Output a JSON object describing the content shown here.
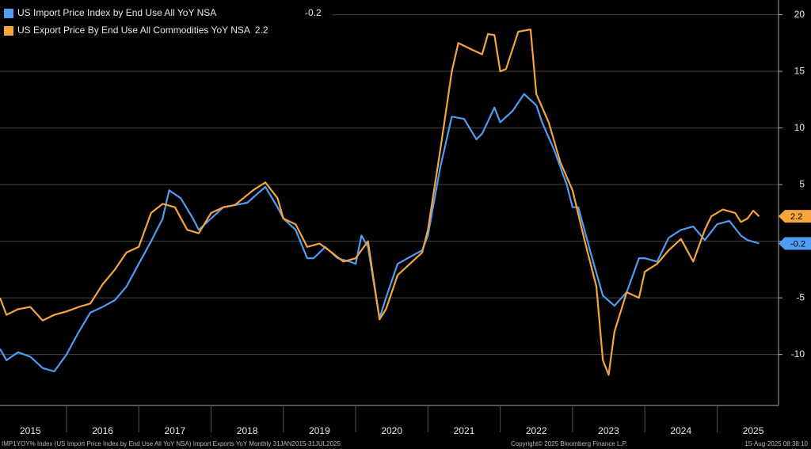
{
  "chart_data": {
    "type": "line",
    "footer": "IMP1YOY% Index (US Import Price Index by End Use All YoY NSA) Import Exports YoY  Monthly 31JAN2015-31JUL2025",
    "copyright": "Copyright© 2025 Bloomberg Finance L.P.",
    "timestamp": "15-Aug-2025 08:38:10",
    "xlim": [
      2015.08,
      2025.85
    ],
    "xticks": [
      {
        "value": 2015,
        "label": "2015"
      },
      {
        "value": 2016,
        "label": "2016"
      },
      {
        "value": 2017,
        "label": "2017"
      },
      {
        "value": 2018,
        "label": "2018"
      },
      {
        "value": 2019,
        "label": "2019"
      },
      {
        "value": 2020,
        "label": "2020"
      },
      {
        "value": 2021,
        "label": "2021"
      },
      {
        "value": 2022,
        "label": "2022"
      },
      {
        "value": 2023,
        "label": "2023"
      },
      {
        "value": 2024,
        "label": "2024"
      },
      {
        "value": 2025,
        "label": "2025"
      }
    ],
    "ylim": [
      -14.5,
      21.3
    ],
    "yticks": [
      -10,
      -5,
      0,
      5,
      10,
      15,
      20
    ],
    "grid": true,
    "series": [
      {
        "name": "US Import Price Index by End Use All YoY NSA",
        "color": "#4f9cf0",
        "last_value": -0.2,
        "x": [
          2015.08,
          2015.17,
          2015.33,
          2015.5,
          2015.67,
          2015.83,
          2016.0,
          2016.17,
          2016.33,
          2016.5,
          2016.67,
          2016.83,
          2017.0,
          2017.17,
          2017.33,
          2017.42,
          2017.58,
          2017.75,
          2017.83,
          2018.0,
          2018.17,
          2018.33,
          2018.5,
          2018.75,
          2018.92,
          2019.0,
          2019.17,
          2019.33,
          2019.42,
          2019.58,
          2019.75,
          2019.92,
          2020.0,
          2020.08,
          2020.17,
          2020.33,
          2020.42,
          2020.58,
          2020.75,
          2020.92,
          2021.0,
          2021.17,
          2021.33,
          2021.5,
          2021.67,
          2021.75,
          2021.92,
          2022.0,
          2022.17,
          2022.33,
          2022.5,
          2022.58,
          2022.75,
          2022.92,
          2023.0,
          2023.08,
          2023.25,
          2023.42,
          2023.58,
          2023.75,
          2023.92,
          2024.0,
          2024.17,
          2024.33,
          2024.5,
          2024.67,
          2024.83,
          2025.0,
          2025.17,
          2025.33,
          2025.42,
          2025.58
        ],
        "values": [
          -9.5,
          -10.5,
          -9.8,
          -10.2,
          -11.2,
          -11.5,
          -10,
          -8,
          -6.3,
          -5.8,
          -5.2,
          -4,
          -2,
          0,
          2,
          4.5,
          3.8,
          2,
          1,
          2,
          3,
          3.2,
          3.4,
          4.8,
          3,
          2,
          1,
          -1.5,
          -1.5,
          -0.5,
          -1.5,
          -1.8,
          -2,
          0.5,
          -0.5,
          -6.8,
          -5,
          -2,
          -1.4,
          -0.8,
          0.5,
          6.5,
          11,
          10.8,
          9,
          9.5,
          11.8,
          10.5,
          11.5,
          13,
          12,
          10.5,
          8,
          5,
          3,
          3,
          -1,
          -4.8,
          -5.7,
          -4.5,
          -1.5,
          -1.5,
          -1.8,
          0.3,
          1,
          1.3,
          0.1,
          1.5,
          1.8,
          0.5,
          0.1,
          -0.2
        ]
      },
      {
        "name": "US Export Price By End Use All Commodities YoY NSA",
        "color": "#f5a53c",
        "last_value": 2.2,
        "x": [
          2015.08,
          2015.17,
          2015.33,
          2015.5,
          2015.67,
          2015.83,
          2016.0,
          2016.17,
          2016.33,
          2016.5,
          2016.67,
          2016.83,
          2017.0,
          2017.17,
          2017.33,
          2017.5,
          2017.67,
          2017.83,
          2018.0,
          2018.17,
          2018.33,
          2018.58,
          2018.75,
          2018.92,
          2019.0,
          2019.17,
          2019.33,
          2019.5,
          2019.67,
          2019.83,
          2020.0,
          2020.17,
          2020.33,
          2020.42,
          2020.58,
          2020.75,
          2020.92,
          2021.0,
          2021.17,
          2021.33,
          2021.42,
          2021.58,
          2021.75,
          2021.83,
          2021.92,
          2022.0,
          2022.08,
          2022.25,
          2022.42,
          2022.5,
          2022.67,
          2022.83,
          2023.0,
          2023.17,
          2023.33,
          2023.42,
          2023.5,
          2023.58,
          2023.75,
          2023.92,
          2024.0,
          2024.17,
          2024.33,
          2024.5,
          2024.67,
          2024.83,
          2024.92,
          2025.08,
          2025.25,
          2025.33,
          2025.42,
          2025.5,
          2025.58
        ],
        "values": [
          -5,
          -6.5,
          -6,
          -5.8,
          -7,
          -6.5,
          -6.2,
          -5.8,
          -5.5,
          -3.8,
          -2.5,
          -1,
          -0.5,
          2.5,
          3.3,
          3,
          1,
          0.7,
          2.5,
          3,
          3.2,
          4.5,
          5.2,
          3.8,
          2,
          1.5,
          -0.5,
          -0.2,
          -1,
          -1.8,
          -1.5,
          0,
          -6.9,
          -6,
          -3,
          -2,
          -1,
          1,
          8,
          15,
          17.5,
          17,
          16.5,
          18.3,
          18.2,
          15,
          15.2,
          18.5,
          18.7,
          13,
          10.5,
          7,
          4.5,
          0,
          -4,
          -10.5,
          -11.8,
          -8,
          -4.5,
          -5,
          -2.7,
          -2,
          -0.8,
          0.2,
          -1.8,
          1,
          2.2,
          2.8,
          2.5,
          1.7,
          2,
          2.7,
          2.2
        ]
      }
    ]
  }
}
